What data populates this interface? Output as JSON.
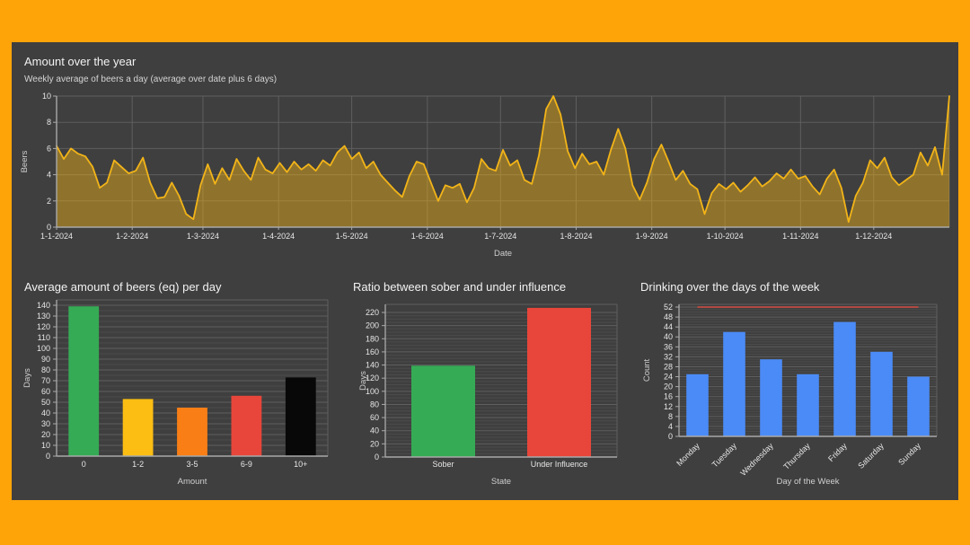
{
  "frame": {
    "background_color": "#ffa408",
    "panel_color": "#3f3f3f"
  },
  "chart_data": [
    {
      "type": "area",
      "title": "Amount over the year",
      "subtitle": "Weekly average of beers a day (average over date plus 6 days)",
      "xlabel": "Date",
      "ylabel": "Beers",
      "ylim": [
        0,
        10
      ],
      "ytick_step": 2,
      "grid": true,
      "x_tick_labels": [
        "1-1-2024",
        "1-2-2024",
        "1-3-2024",
        "1-4-2024",
        "1-5-2024",
        "1-6-2024",
        "1-7-2024",
        "1-8-2024",
        "1-9-2024",
        "1-10-2024",
        "1-11-2024",
        "1-12-2024"
      ],
      "x_tick_day_offsets": [
        0,
        31,
        60,
        91,
        121,
        152,
        182,
        213,
        244,
        274,
        305,
        335
      ],
      "total_days": 366,
      "sample_interval_days": 3,
      "line_color": "#f2b418",
      "fill_opacity": 0.45,
      "values": [
        6.2,
        5.2,
        6.0,
        5.6,
        5.4,
        4.6,
        3.0,
        3.4,
        5.1,
        4.6,
        4.1,
        4.3,
        5.3,
        3.4,
        2.2,
        2.3,
        3.4,
        2.4,
        1.0,
        0.6,
        3.2,
        4.8,
        3.3,
        4.5,
        3.6,
        5.2,
        4.3,
        3.6,
        5.3,
        4.4,
        4.1,
        4.9,
        4.2,
        5.0,
        4.4,
        4.8,
        4.3,
        5.1,
        4.7,
        5.7,
        6.2,
        5.2,
        5.7,
        4.5,
        5.0,
        4.0,
        3.4,
        2.8,
        2.3,
        3.9,
        5.0,
        4.8,
        3.4,
        2.0,
        3.2,
        3.0,
        3.3,
        1.9,
        3.0,
        5.2,
        4.5,
        4.3,
        5.9,
        4.7,
        5.1,
        3.6,
        3.3,
        5.5,
        9.0,
        10.0,
        8.6,
        5.8,
        4.5,
        5.6,
        4.8,
        5.0,
        4.0,
        5.9,
        7.5,
        6.0,
        3.2,
        2.1,
        3.4,
        5.2,
        6.3,
        5.0,
        3.6,
        4.3,
        3.3,
        2.9,
        1.0,
        2.6,
        3.3,
        2.9,
        3.4,
        2.7,
        3.2,
        3.8,
        3.1,
        3.5,
        4.1,
        3.7,
        4.4,
        3.7,
        3.9,
        3.1,
        2.5,
        3.7,
        4.4,
        3.0,
        0.4,
        2.4,
        3.4,
        5.1,
        4.5,
        5.3,
        3.8,
        3.2,
        3.6,
        4.0,
        5.7,
        4.7,
        6.1,
        4.0,
        10.0
      ]
    },
    {
      "type": "bar",
      "title": "Average amount of beers (eq) per day",
      "xlabel": "Amount",
      "ylabel": "Days",
      "categories": [
        "0",
        "1-2",
        "3-5",
        "6-9",
        "10+"
      ],
      "values": [
        139,
        53,
        45,
        56,
        73
      ],
      "bar_colors": [
        "#35ab55",
        "#fcbe12",
        "#f97e16",
        "#e8463a",
        "#080808"
      ],
      "ytick_max": 140,
      "ytick_step": 10,
      "minor_step": 5
    },
    {
      "type": "bar",
      "title": "Ratio between sober and under influence",
      "xlabel": "State",
      "ylabel": "Days",
      "categories": [
        "Sober",
        "Under Influence"
      ],
      "values": [
        139,
        227
      ],
      "bar_colors": [
        "#35ab55",
        "#e8463a"
      ],
      "ytick_max": 220,
      "ytick_step": 20,
      "minor_step": 5
    },
    {
      "type": "bar",
      "title": "Drinking over the days of the week",
      "xlabel": "Day of the Week",
      "ylabel": "Count",
      "categories": [
        "Monday",
        "Tuesday",
        "Wednesday",
        "Thursday",
        "Friday",
        "Saturday",
        "Sunday"
      ],
      "values": [
        25,
        42,
        31,
        25,
        46,
        34,
        24
      ],
      "bar_colors": [
        "#4b8bf7",
        "#4b8bf7",
        "#4b8bf7",
        "#4b8bf7",
        "#4b8bf7",
        "#4b8bf7",
        "#4b8bf7"
      ],
      "ytick_max": 52,
      "ytick_step": 4,
      "minor_step": 1,
      "rotated_x_labels": true,
      "reference_line": {
        "value": 52,
        "color": "#b04a42"
      }
    }
  ]
}
